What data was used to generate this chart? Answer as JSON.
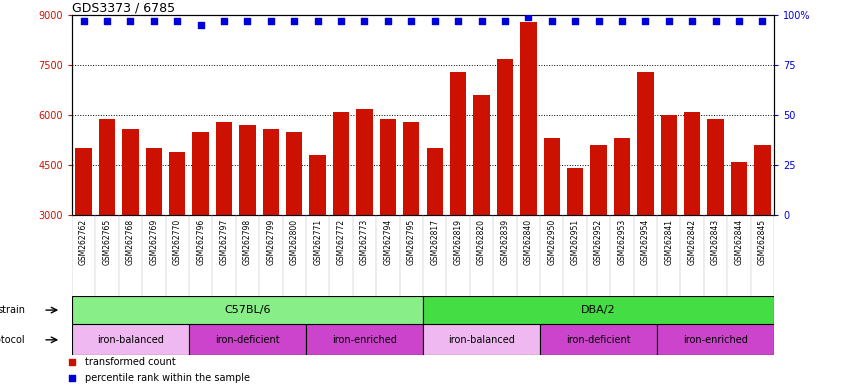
{
  "title": "GDS3373 / 6785",
  "samples": [
    "GSM262762",
    "GSM262765",
    "GSM262768",
    "GSM262769",
    "GSM262770",
    "GSM262796",
    "GSM262797",
    "GSM262798",
    "GSM262799",
    "GSM262800",
    "GSM262771",
    "GSM262772",
    "GSM262773",
    "GSM262794",
    "GSM262795",
    "GSM262817",
    "GSM262819",
    "GSM262820",
    "GSM262839",
    "GSM262840",
    "GSM262950",
    "GSM262951",
    "GSM262952",
    "GSM262953",
    "GSM262954",
    "GSM262841",
    "GSM262842",
    "GSM262843",
    "GSM262844",
    "GSM262845"
  ],
  "bar_values": [
    5000,
    5900,
    5600,
    5000,
    4900,
    5500,
    5800,
    5700,
    5600,
    5500,
    4800,
    6100,
    6200,
    5900,
    5800,
    5000,
    7300,
    6600,
    7700,
    8800,
    5300,
    4400,
    5100,
    5300,
    7300,
    6000,
    6100,
    5900,
    4600,
    5100
  ],
  "percentile_values": [
    97,
    97,
    97,
    97,
    97,
    95,
    97,
    97,
    97,
    97,
    97,
    97,
    97,
    97,
    97,
    97,
    97,
    97,
    97,
    99,
    97,
    97,
    97,
    97,
    97,
    97,
    97,
    97,
    97,
    97
  ],
  "bar_color": "#cc1100",
  "percentile_color": "#0000dd",
  "ylim_left": [
    3000,
    9000
  ],
  "ylim_right": [
    0,
    100
  ],
  "yticks_left": [
    3000,
    4500,
    6000,
    7500,
    9000
  ],
  "yticks_right": [
    0,
    25,
    50,
    75,
    100
  ],
  "grid_lines": [
    4500,
    6000,
    7500
  ],
  "strain_labels": [
    {
      "label": "C57BL/6",
      "start": 0,
      "end": 15,
      "color": "#88ee88"
    },
    {
      "label": "DBA/2",
      "start": 15,
      "end": 30,
      "color": "#44dd44"
    }
  ],
  "protocol_labels": [
    {
      "label": "iron-balanced",
      "start": 0,
      "end": 5,
      "color": "#f0b8f0"
    },
    {
      "label": "iron-deficient",
      "start": 5,
      "end": 10,
      "color": "#cc44cc"
    },
    {
      "label": "iron-enriched",
      "start": 10,
      "end": 15,
      "color": "#cc44cc"
    },
    {
      "label": "iron-balanced",
      "start": 15,
      "end": 20,
      "color": "#f0b8f0"
    },
    {
      "label": "iron-deficient",
      "start": 20,
      "end": 25,
      "color": "#cc44cc"
    },
    {
      "label": "iron-enriched",
      "start": 25,
      "end": 30,
      "color": "#cc44cc"
    }
  ],
  "bg_color": "#ffffff",
  "sample_bg_color": "#cccccc",
  "legend_items": [
    {
      "label": "transformed count",
      "color": "#cc1100",
      "marker": "s"
    },
    {
      "label": "percentile rank within the sample",
      "color": "#0000dd",
      "marker": "s"
    }
  ]
}
